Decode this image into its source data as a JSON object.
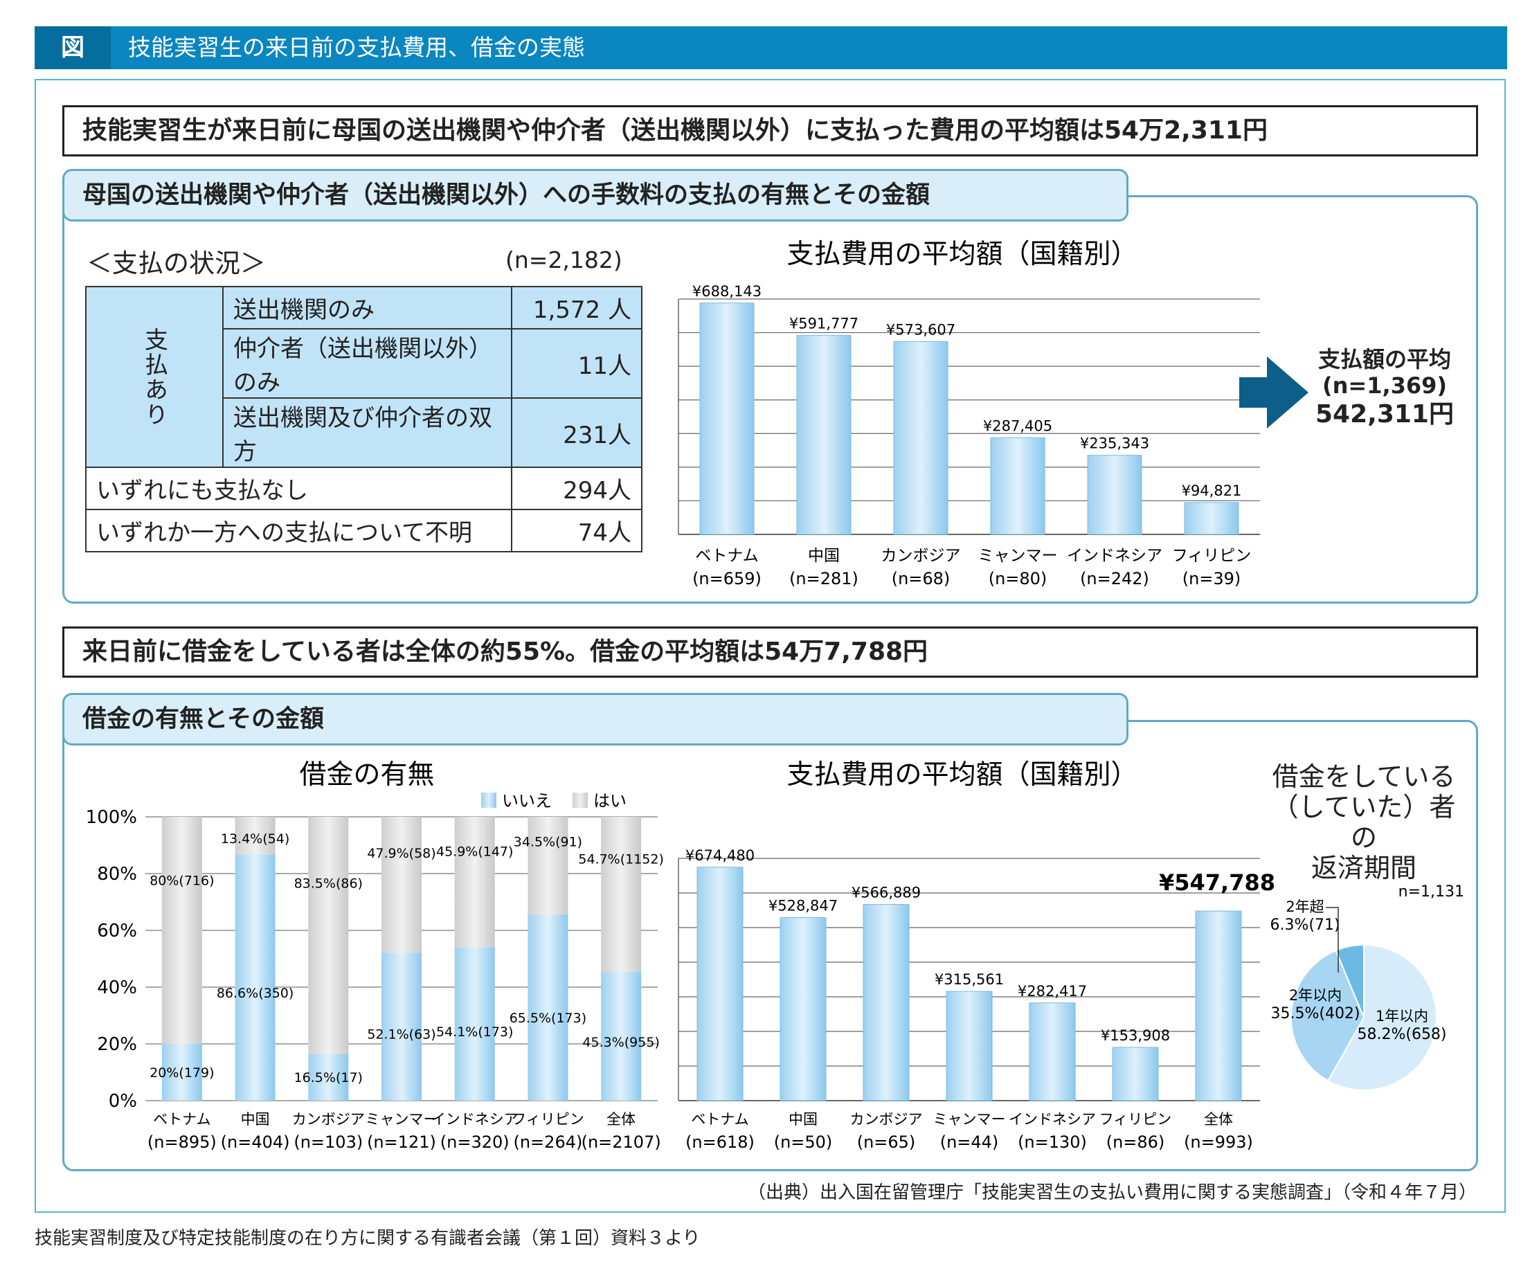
{
  "header": {
    "tag": "図",
    "title": "技能実習生の来日前の支払費用、借金の実態"
  },
  "headline1": "技能実習生が来日前に母国の送出機関や仲介者（送出機関以外）に支払った費用の平均額は54万2,311円",
  "section1": {
    "tab": "母国の送出機関や仲介者（送出機関以外）への手数料の支払の有無とその金額",
    "status_title": "＜支払の状況＞",
    "status_n": "(n=2,182)",
    "paid_group_label": "支払あり",
    "rows": [
      {
        "label": "送出機関のみ",
        "value": "1,572 人"
      },
      {
        "label": "仲介者（送出機関以外）のみ",
        "value": "11人"
      },
      {
        "label": "送出機関及び仲介者の双方",
        "value": "231人"
      },
      {
        "label": "いずれにも支払なし",
        "value": "294人"
      },
      {
        "label": "いずれか一方への支払について不明",
        "value": "74人"
      }
    ],
    "summary": {
      "l1": "支払額の平均",
      "l2": "(n=1,369)",
      "l3": "542,311円"
    }
  },
  "headline2": "来日前に借金をしている者は全体の約55%。借金の平均額は54万7,788円",
  "section2": {
    "tab": "借金の有無とその金額",
    "repay_title": [
      "借金をしている",
      "（していた）者の",
      "返済期間"
    ]
  },
  "colors": {
    "blue": "#a8d6f2",
    "blue_dark": "#6cb9e6",
    "gray": "#d9d9d9",
    "arrow": "#0d5e89"
  },
  "chart_data": [
    {
      "type": "bar",
      "title": "支払費用の平均額（国籍別）",
      "categories": [
        "ベトナム",
        "中国",
        "カンボジア",
        "ミャンマー",
        "インドネシア",
        "フィリピン"
      ],
      "n_labels": [
        "(n=659)",
        "(n=281)",
        "(n=68)",
        "(n=80)",
        "(n=242)",
        "(n=39)"
      ],
      "values": [
        688143,
        591777,
        573607,
        287405,
        235343,
        94821
      ],
      "value_labels": [
        "¥688,143",
        "¥591,777",
        "¥573,607",
        "¥287,405",
        "¥235,343",
        "¥94,821"
      ],
      "ylim": [
        0,
        700000
      ],
      "grid": true
    },
    {
      "type": "bar",
      "stacked": true,
      "title": "借金の有無",
      "categories": [
        "ベトナム",
        "中国",
        "カンボジア",
        "ミャンマー",
        "インドネシア",
        "フィリピン",
        "全体"
      ],
      "n_labels": [
        "(n=895)",
        "(n=404)",
        "(n=103)",
        "(n=121)",
        "(n=320)",
        "(n=264)",
        "(n=2107)"
      ],
      "legend": [
        "いいえ",
        "はい"
      ],
      "series": [
        {
          "name": "いいえ",
          "values": [
            20,
            86.6,
            16.5,
            52.1,
            54.1,
            65.5,
            45.3
          ],
          "labels": [
            "20%(179)",
            "86.6%(350)",
            "16.5%(17)",
            "52.1%(63)",
            "54.1%(173)",
            "65.5%(173)",
            "45.3%(955)"
          ]
        },
        {
          "name": "はい",
          "values": [
            80,
            13.4,
            83.5,
            47.9,
            45.9,
            34.5,
            54.7
          ],
          "labels": [
            "80%(716)",
            "13.4%(54)",
            "83.5%(86)",
            "47.9%(58)",
            "45.9%(147)",
            "34.5%(91)",
            "54.7%(1152)"
          ]
        }
      ],
      "yticks": [
        "0%",
        "20%",
        "40%",
        "60%",
        "80%",
        "100%"
      ],
      "ylim": [
        0,
        100
      ],
      "grid": true
    },
    {
      "type": "bar",
      "title": "支払費用の平均額（国籍別）",
      "categories": [
        "ベトナム",
        "中国",
        "カンボジア",
        "ミャンマー",
        "インドネシア",
        "フィリピン",
        "全体"
      ],
      "n_labels": [
        "(n=618)",
        "(n=50)",
        "(n=65)",
        "(n=44)",
        "(n=130)",
        "(n=86)",
        "(n=993)"
      ],
      "values": [
        674480,
        528847,
        566889,
        315561,
        282417,
        153908,
        547788
      ],
      "value_labels": [
        "¥674,480",
        "¥528,847",
        "¥566,889",
        "¥315,561",
        "¥282,417",
        "¥153,908",
        "¥547,788"
      ],
      "ylim": [
        0,
        700000
      ],
      "grid": true
    },
    {
      "type": "pie",
      "n": "n=1,131",
      "slices": [
        {
          "label": "1年以内",
          "value": 58.2,
          "text": "58.2%(658)"
        },
        {
          "label": "2年以内",
          "value": 35.5,
          "text": "35.5%(402)"
        },
        {
          "label": "2年超",
          "value": 6.3,
          "text": "6.3%(71)"
        }
      ]
    }
  ],
  "source": "（出典）出入国在留管理庁「技能実習生の支払い費用に関する実態調査」（令和４年７月）",
  "footer": "技能実習制度及び特定技能制度の在り方に関する有識者会議（第１回）資料３より"
}
